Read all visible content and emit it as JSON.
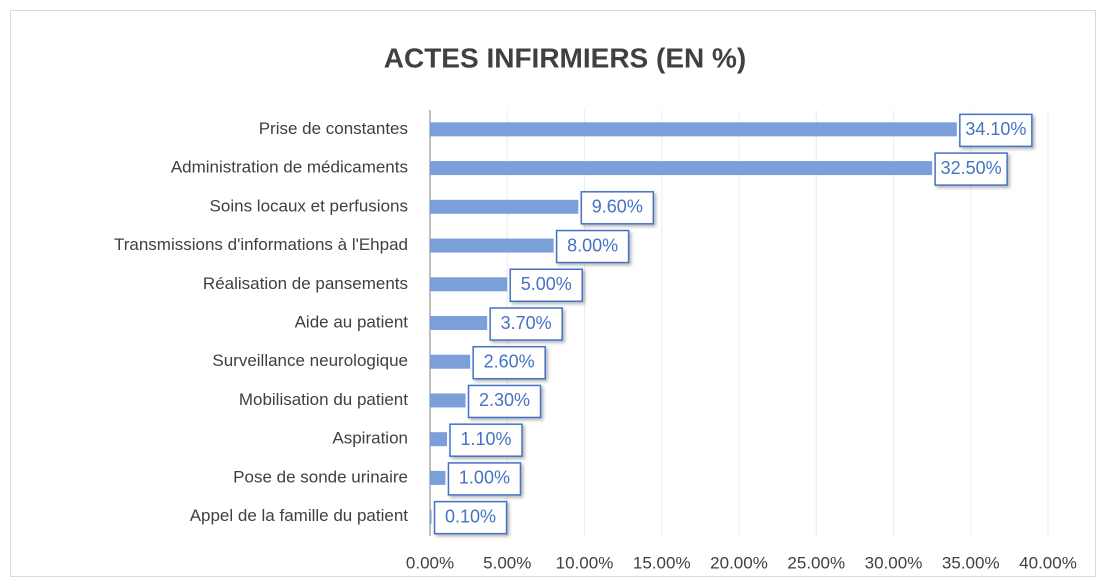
{
  "chart_data": {
    "type": "barh",
    "title": "ACTES INFIRMIERS (EN %)",
    "categories": [
      "Prise de constantes",
      "Administration de médicaments",
      "Soins locaux et perfusions",
      "Transmissions d'informations à l'Ehpad",
      "Réalisation de pansements",
      "Aide au patient",
      "Surveillance neurologique",
      "Mobilisation du patient",
      "Aspiration",
      "Pose de sonde urinaire",
      "Appel de la famille du patient"
    ],
    "values": [
      34.1,
      32.5,
      9.6,
      8.0,
      5.0,
      3.7,
      2.6,
      2.3,
      1.1,
      1.0,
      0.1
    ],
    "value_labels": [
      "34.10%",
      "32.50%",
      "9.60%",
      "8.00%",
      "5.00%",
      "3.70%",
      "2.60%",
      "2.30%",
      "1.10%",
      "1.00%",
      "0.10%"
    ],
    "color": "#7a9fd9",
    "xlim": [
      0,
      40
    ],
    "xticks": [
      {
        "value": 0,
        "label": "0.00%"
      },
      {
        "value": 5,
        "label": "5.00%"
      },
      {
        "value": 10,
        "label": "10.00%"
      },
      {
        "value": 15,
        "label": "15.00%"
      },
      {
        "value": 20,
        "label": "20.00%"
      },
      {
        "value": 25,
        "label": "25.00%"
      },
      {
        "value": 30,
        "label": "30.00%"
      },
      {
        "value": 35,
        "label": "35.00%"
      },
      {
        "value": 40,
        "label": "40.00%"
      }
    ],
    "grid": true
  }
}
